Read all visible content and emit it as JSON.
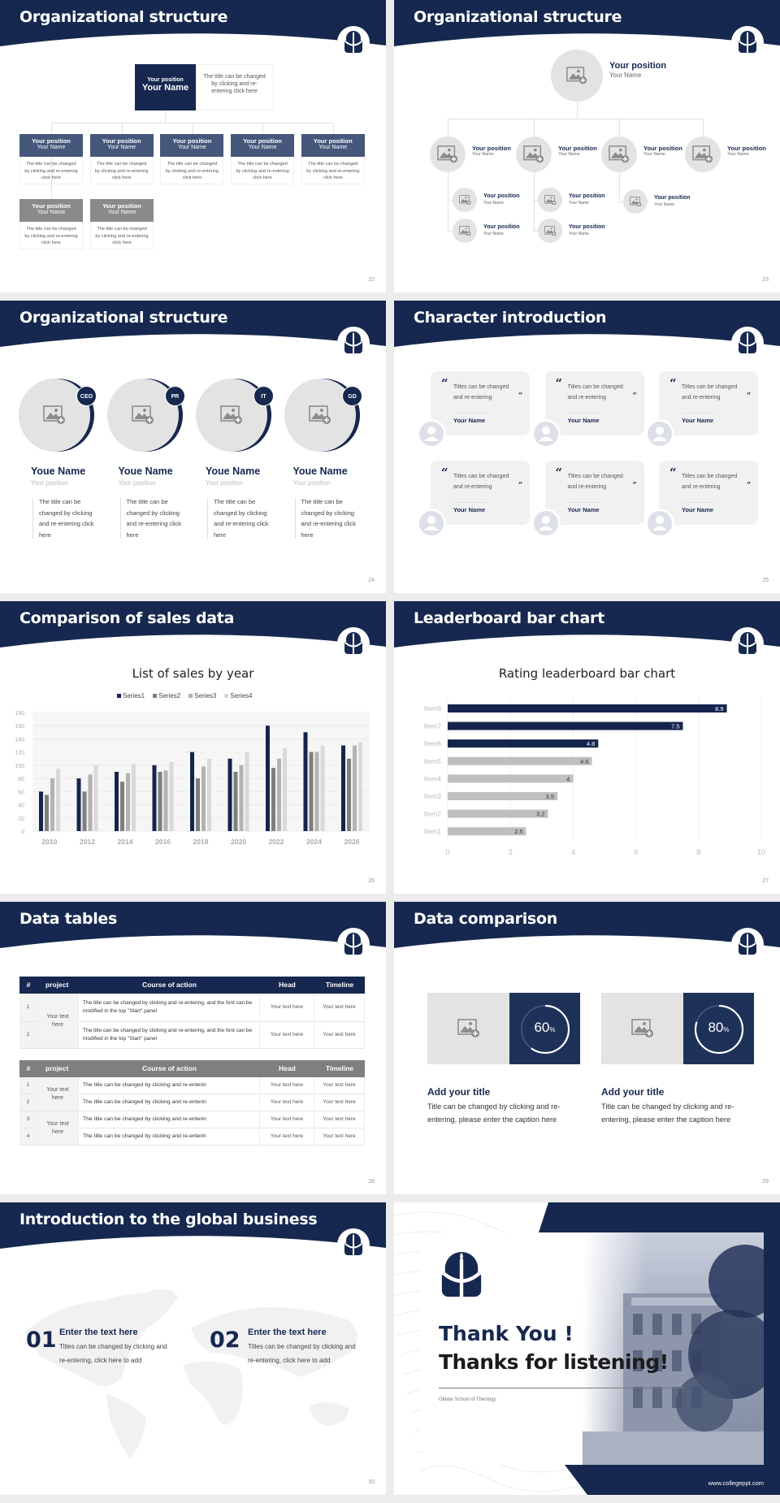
{
  "colors": {
    "navy": "#16284f",
    "slate": "#46577c",
    "gray_box": "#8a8a8a",
    "placeholder": "#e4e3e3"
  },
  "slides": {
    "s22": {
      "title": "Organizational structure",
      "page": "22",
      "top": {
        "position": "Your position",
        "name": "Your Name",
        "desc": "The title can be changed by clicking and re-entering click here"
      },
      "row1": [
        {
          "position": "Your position",
          "name": "Your Name",
          "desc": "The title can be changed by clicking and re-entering click here"
        },
        {
          "position": "Your position",
          "name": "Your Name",
          "desc": "The title can be changed by clicking and re-entering click here"
        },
        {
          "position": "Your position",
          "name": "Your Name",
          "desc": "The title can be changed by clicking and re-entering click here"
        },
        {
          "position": "Your position",
          "name": "Your Name",
          "desc": "The title can be changed by clicking and re-entering click here"
        },
        {
          "position": "Your position",
          "name": "Your Name",
          "desc": "The title can be changed by clicking and re-entering click here"
        }
      ],
      "row2": [
        {
          "position": "Your position",
          "name": "Your Name",
          "desc": "The title can be changed by clicking and re-entering click here"
        },
        {
          "position": "Your position",
          "name": "Your Name",
          "desc": "The title can be changed by clicking and re-entering click here"
        }
      ]
    },
    "s23": {
      "title": "Organizational structure",
      "page": "23",
      "top": {
        "position": "Your position",
        "name": "Your Name"
      },
      "level2": [
        {
          "position": "Your position",
          "name": "Your Name"
        },
        {
          "position": "Your position",
          "name": "Your Name"
        },
        {
          "position": "Your position",
          "name": "Your Name"
        },
        {
          "position": "Your position",
          "name": "Your Name"
        }
      ],
      "level3": [
        {
          "position": "Your position",
          "name": "Your Name"
        },
        {
          "position": "Your position",
          "name": "Your Name"
        },
        {
          "position": "Your position",
          "name": "Your Name"
        },
        {
          "position": "Your position",
          "name": "Your Name"
        },
        {
          "position": "Your position",
          "name": "Your Name"
        }
      ]
    },
    "s24": {
      "title": "Organizational structure",
      "page": "24",
      "members": [
        {
          "badge": "CEO",
          "name": "Youe Name",
          "position": "Your position",
          "desc": "The title can be changed by clicking and re-entering click here"
        },
        {
          "badge": "PR",
          "name": "Youe Name",
          "position": "Your position",
          "desc": "The title can be changed by clicking and re-entering click here"
        },
        {
          "badge": "IT",
          "name": "Youe Name",
          "position": "Your position",
          "desc": "The title can be changed by clicking and re-entering click here"
        },
        {
          "badge": "GD",
          "name": "Youe Name",
          "position": "Your position",
          "desc": "The title can be changed by clicking and re-entering click here"
        }
      ]
    },
    "s25": {
      "title": "Character introduction",
      "page": "25",
      "open_quote": "“",
      "close_quote": "”",
      "cards": [
        {
          "quote": "Titles can be changed and re-entering",
          "name": "Your Name"
        },
        {
          "quote": "Titles can be changed and re-entering",
          "name": "Your Name"
        },
        {
          "quote": "Titles can be changed and re-entering",
          "name": "Your Name"
        },
        {
          "quote": "Titles can be changed and re-entering",
          "name": "Your Name"
        },
        {
          "quote": "Titles can be changed and re-entering",
          "name": "Your Name"
        },
        {
          "quote": "Titles can be changed and re-entering",
          "name": "Your Name"
        }
      ]
    },
    "s26": {
      "title": "Comparison of sales data",
      "page": "26"
    },
    "s27": {
      "title": "Leaderboard bar chart",
      "page": "27"
    },
    "s28": {
      "title": "Data tables",
      "page": "28",
      "headers": [
        "#",
        "project",
        "Course of action",
        "Head",
        "Timeline"
      ],
      "table1": {
        "project": "Your text here",
        "rows": [
          {
            "num": "1",
            "action": "The title can be changed by clicking and re-entering, and the font can be modified in the top \"Start\" panel",
            "head": "Your text here",
            "timeline": "Your text here"
          },
          {
            "num": "2",
            "action": "The title can be changed by clicking and re-entering, and the font can be modified in the top \"Start\" panel",
            "head": "Your text here",
            "timeline": "Your text here"
          }
        ]
      },
      "table2": {
        "projects": [
          "Your text here",
          "Your text here"
        ],
        "rows": [
          {
            "num": "1",
            "action": "The title can be changed by clicking and re-enterin",
            "head": "Your text here",
            "timeline": "Your text here"
          },
          {
            "num": "2",
            "action": "The title can be changed by clicking and re-enterin",
            "head": "Your text here",
            "timeline": "Your text here"
          },
          {
            "num": "3",
            "action": "The title can be changed by clicking and re-enterin",
            "head": "Your text here",
            "timeline": "Your text here"
          },
          {
            "num": "4",
            "action": "The title can be changed by clicking and re-enterin",
            "head": "Your text here",
            "timeline": "Your text here"
          }
        ]
      }
    },
    "s29": {
      "title": "Data comparison",
      "page": "29",
      "unit": "%",
      "items": [
        {
          "percent": 60,
          "title": "Add your title",
          "desc": "Title can be changed by clicking and re-entering, please enter the caption here"
        },
        {
          "percent": 80,
          "title": "Add your title",
          "desc": "Title can be changed by clicking and re-entering, please enter the caption here"
        }
      ]
    },
    "s30": {
      "title": "Introduction to the global business",
      "page": "30",
      "items": [
        {
          "num": "01",
          "title": "Enter the text here",
          "desc": "Titles can be changed by clicking and re-entering, click here to add"
        },
        {
          "num": "02",
          "title": "Enter the text here",
          "desc": "Titles can be changed by clicking and re-entering, click here to add"
        }
      ]
    },
    "s31": {
      "line1": "Thank You !",
      "line2": "Thanks for listening!",
      "school": "Oblate School of Theology",
      "url": "www.collegeppt.com"
    }
  },
  "chart_data": [
    {
      "type": "bar",
      "title": "List of sales by year",
      "categories": [
        "2010",
        "2012",
        "2014",
        "2016",
        "2018",
        "2020",
        "2022",
        "2024",
        "2026"
      ],
      "series": [
        {
          "name": "Series1",
          "color": "#15244d",
          "values": [
            60,
            80,
            90,
            100,
            120,
            110,
            160,
            150,
            130
          ]
        },
        {
          "name": "Series2",
          "color": "#7f7f7f",
          "values": [
            55,
            60,
            75,
            90,
            80,
            90,
            96,
            120,
            110
          ]
        },
        {
          "name": "Series3",
          "color": "#b3b3b3",
          "values": [
            80,
            86,
            88,
            92,
            98,
            100,
            110,
            120,
            130
          ]
        },
        {
          "name": "Series4",
          "color": "#d9d9d9",
          "values": [
            95,
            100,
            102,
            105,
            110,
            120,
            126,
            130,
            135
          ]
        }
      ],
      "ylim": [
        0,
        180
      ],
      "yticks": [
        "0",
        "20",
        "40",
        "60",
        "80",
        "100",
        "120",
        "140",
        "160",
        "180"
      ],
      "legend": "top",
      "grid": true
    },
    {
      "type": "bar",
      "orientation": "horizontal",
      "title": "Rating leaderboard bar chart",
      "categories": [
        "Item8",
        "Item7",
        "Item6",
        "Item5",
        "Item4",
        "Item3",
        "Item2",
        "Item1"
      ],
      "values": [
        8.9,
        7.5,
        4.8,
        4.6,
        4,
        3.5,
        3.2,
        2.5
      ],
      "labels": [
        "8.9",
        "7.5",
        "4.8",
        "4.6",
        "4",
        "3.5",
        "3.2",
        "2.5"
      ],
      "colors": [
        "#15244d",
        "#15244d",
        "#15244d",
        "#bfbfbf",
        "#bfbfbf",
        "#bfbfbf",
        "#bfbfbf",
        "#bfbfbf"
      ],
      "xlim": [
        0,
        10
      ],
      "xticks": [
        "0",
        "2",
        "4",
        "6",
        "8",
        "10"
      ],
      "grid": true
    }
  ]
}
